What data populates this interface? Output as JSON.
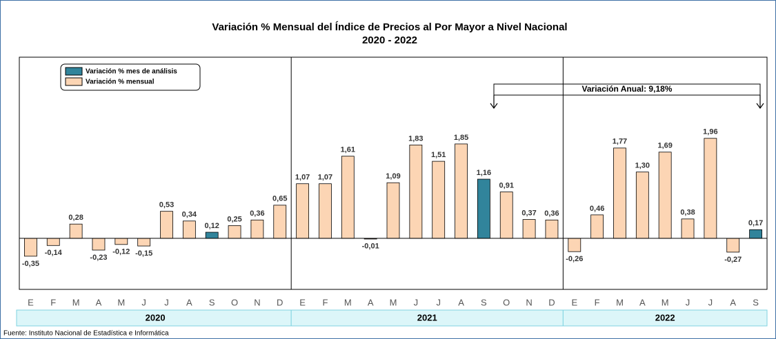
{
  "chart_data": {
    "type": "bar",
    "title": "Variación % Mensual del Índice de Precios al Por Mayor a Nivel Nacional",
    "subtitle": "2020 - 2022",
    "groups": [
      {
        "name": "2020",
        "categories": [
          "E",
          "F",
          "M",
          "A",
          "M",
          "J",
          "J",
          "A",
          "S",
          "O",
          "N",
          "D"
        ]
      },
      {
        "name": "2021",
        "categories": [
          "E",
          "F",
          "M",
          "A",
          "M",
          "J",
          "J",
          "A",
          "S",
          "O",
          "N",
          "D"
        ]
      },
      {
        "name": "2022",
        "categories": [
          "E",
          "F",
          "M",
          "A",
          "M",
          "J",
          "J",
          "A",
          "S"
        ]
      }
    ],
    "series": [
      {
        "name": "Variación % mes de análisis",
        "color": "#31849b",
        "values": [
          null,
          null,
          null,
          null,
          null,
          null,
          null,
          null,
          0.12,
          null,
          null,
          null,
          null,
          null,
          null,
          null,
          null,
          null,
          null,
          null,
          1.16,
          null,
          null,
          null,
          null,
          null,
          null,
          null,
          null,
          null,
          null,
          null,
          0.17
        ],
        "value_labels": [
          null,
          null,
          null,
          null,
          null,
          null,
          null,
          null,
          "0,12",
          null,
          null,
          null,
          null,
          null,
          null,
          null,
          null,
          null,
          null,
          null,
          "1,16",
          null,
          null,
          null,
          null,
          null,
          null,
          null,
          null,
          null,
          null,
          null,
          "0,17"
        ]
      },
      {
        "name": "Variación % mensual",
        "color": "#fcd5b4",
        "values": [
          -0.35,
          -0.14,
          0.28,
          -0.23,
          -0.12,
          -0.15,
          0.53,
          0.34,
          null,
          0.25,
          0.36,
          0.65,
          1.07,
          1.07,
          1.61,
          -0.01,
          1.09,
          1.83,
          1.51,
          1.85,
          null,
          0.91,
          0.37,
          0.36,
          -0.26,
          0.46,
          1.77,
          1.3,
          1.69,
          0.38,
          1.96,
          -0.27,
          null
        ],
        "value_labels": [
          "-0,35",
          "-0,14",
          "0,28",
          "-0,23",
          "-0,12",
          "-0,15",
          "0,53",
          "0,34",
          null,
          "0,25",
          "0,36",
          "0,65",
          "1,07",
          "1,07",
          "1,61",
          "-0,01",
          "1,09",
          "1,83",
          "1,51",
          "1,85",
          null,
          "0,91",
          "0,37",
          "0,36",
          "-0,26",
          "0,46",
          "1,77",
          "1,30",
          "1,69",
          "0,38",
          "1,96",
          "-0,27",
          null
        ]
      }
    ],
    "ylim": [
      -1.0,
      3.55
    ],
    "annotation": "Variación Anual: 9,18%",
    "source": "Fuente: Instituto Nacional de Estadística e Informática"
  }
}
